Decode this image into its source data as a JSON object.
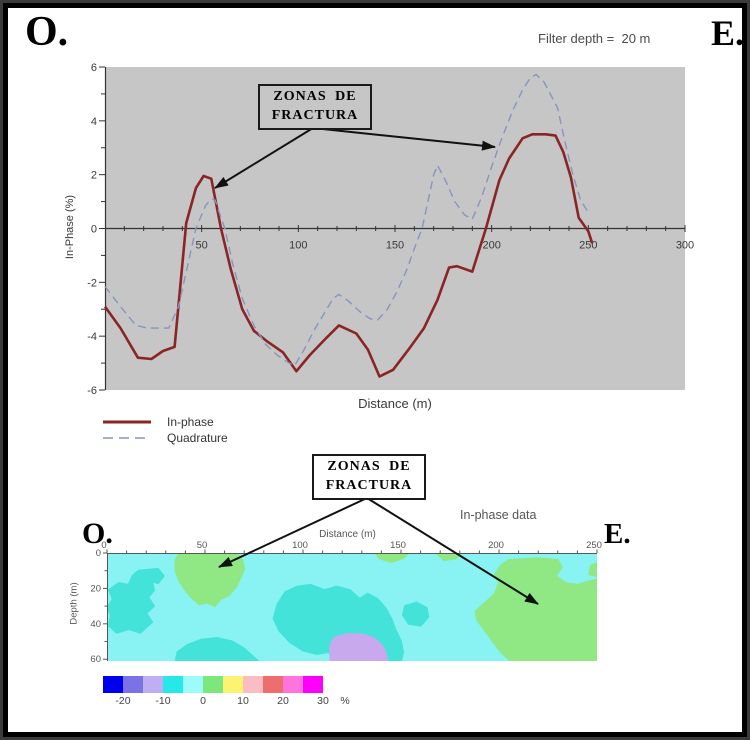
{
  "labels": {
    "top_left": "O.",
    "top_right": "E.",
    "bottom_left": "O.",
    "bottom_right": "E."
  },
  "annotations": {
    "box1": {
      "line1": "ZONAS DE",
      "line2": "FRACTURA"
    },
    "box2": {
      "line1": "ZONAS DE",
      "line2": "FRACTURA"
    }
  },
  "chart_data": [
    {
      "type": "line",
      "title": "Filter depth =  20 m",
      "xlabel": "Distance (m)",
      "ylabel": "In-Phase (%)",
      "xlim": [
        0,
        300
      ],
      "ylim": [
        -6,
        6
      ],
      "x_ticks": [
        50,
        100,
        150,
        200,
        250,
        300
      ],
      "y_ticks": [
        6,
        4,
        2,
        0,
        -2,
        -4,
        -6
      ],
      "plot_background": "#c6c6c6",
      "grid": false,
      "legend_position": "bottom-left",
      "series": [
        {
          "name": "In-phase",
          "color": "#8b2424",
          "style": "solid",
          "points": [
            [
              0,
              -2.9
            ],
            [
              8,
              -3.7
            ],
            [
              17,
              -4.8
            ],
            [
              24,
              -4.85
            ],
            [
              30,
              -4.55
            ],
            [
              36,
              -4.4
            ],
            [
              42,
              0.2
            ],
            [
              47,
              1.5
            ],
            [
              51,
              1.95
            ],
            [
              55,
              1.85
            ],
            [
              60,
              0
            ],
            [
              65,
              -1.5
            ],
            [
              71,
              -3.0
            ],
            [
              77,
              -3.8
            ],
            [
              84,
              -4.2
            ],
            [
              92,
              -4.6
            ],
            [
              99,
              -5.3
            ],
            [
              106,
              -4.7
            ],
            [
              114,
              -4.1
            ],
            [
              121,
              -3.6
            ],
            [
              130,
              -3.9
            ],
            [
              136,
              -4.5
            ],
            [
              142,
              -5.5
            ],
            [
              149,
              -5.25
            ],
            [
              157,
              -4.5
            ],
            [
              165,
              -3.7
            ],
            [
              172,
              -2.65
            ],
            [
              178,
              -1.45
            ],
            [
              182,
              -1.4
            ],
            [
              190,
              -1.6
            ],
            [
              197,
              0
            ],
            [
              204,
              1.8
            ],
            [
              209,
              2.6
            ],
            [
              216,
              3.35
            ],
            [
              221,
              3.5
            ],
            [
              228,
              3.5
            ],
            [
              233,
              3.45
            ],
            [
              237,
              2.85
            ],
            [
              241,
              1.9
            ],
            [
              245,
              0.4
            ],
            [
              250,
              -0.1
            ],
            [
              252,
              -0.55
            ]
          ]
        },
        {
          "name": "Quadrature",
          "color": "#8794c0",
          "style": "dashed",
          "points": [
            [
              0,
              -2.15
            ],
            [
              8,
              -2.9
            ],
            [
              16,
              -3.6
            ],
            [
              22,
              -3.7
            ],
            [
              33,
              -3.7
            ],
            [
              38,
              -2.9
            ],
            [
              43,
              -1.3
            ],
            [
              47,
              0
            ],
            [
              52,
              0.85
            ],
            [
              55,
              1.1
            ],
            [
              57,
              1.05
            ],
            [
              60,
              0.4
            ],
            [
              62,
              0
            ],
            [
              66,
              -1.3
            ],
            [
              71,
              -2.6
            ],
            [
              77,
              -3.6
            ],
            [
              83,
              -4.3
            ],
            [
              89,
              -4.7
            ],
            [
              94,
              -4.95
            ],
            [
              98,
              -5.1
            ],
            [
              103,
              -4.5
            ],
            [
              108,
              -3.8
            ],
            [
              113,
              -3.2
            ],
            [
              118,
              -2.6
            ],
            [
              121,
              -2.45
            ],
            [
              126,
              -2.7
            ],
            [
              132,
              -3.1
            ],
            [
              137,
              -3.35
            ],
            [
              141,
              -3.4
            ],
            [
              146,
              -3.0
            ],
            [
              151,
              -2.35
            ],
            [
              156,
              -1.55
            ],
            [
              160,
              -0.75
            ],
            [
              164,
              0
            ],
            [
              167,
              1.0
            ],
            [
              170,
              2.0
            ],
            [
              172,
              2.35
            ],
            [
              176,
              1.8
            ],
            [
              181,
              1.0
            ],
            [
              186,
              0.5
            ],
            [
              190,
              0.35
            ],
            [
              195,
              1.2
            ],
            [
              200,
              2.3
            ],
            [
              205,
              3.3
            ],
            [
              211,
              4.4
            ],
            [
              216,
              5.15
            ],
            [
              220,
              5.6
            ],
            [
              223,
              5.72
            ],
            [
              227,
              5.45
            ],
            [
              231,
              4.9
            ],
            [
              234,
              4.5
            ],
            [
              238,
              3.2
            ],
            [
              242,
              2.0
            ],
            [
              246,
              1.05
            ],
            [
              250,
              0.6
            ]
          ]
        }
      ]
    },
    {
      "type": "heatmap",
      "title": "In-phase data",
      "xlabel": "Distance (m)",
      "ylabel": "Depth (m)",
      "xlim": [
        0,
        250
      ],
      "ylim": [
        0,
        61
      ],
      "x_ticks": [
        0,
        50,
        100,
        150,
        200,
        250
      ],
      "y_ticks": [
        0,
        20,
        40,
        60
      ],
      "background_color": "#89f3f3",
      "background_value": "0 to 5 %",
      "regions": [
        {
          "name": "turquoise-patch-left",
          "value": "-5 to 0 %",
          "color": "#44e3da",
          "points": [
            [
              16,
              10
            ],
            [
              26,
              9
            ],
            [
              29,
              13
            ],
            [
              26,
              17
            ],
            [
              23,
              16
            ],
            [
              24,
              21
            ],
            [
              21,
              25
            ],
            [
              24,
              30
            ],
            [
              20,
              34
            ],
            [
              23,
              39
            ],
            [
              17,
              45
            ],
            [
              11,
              43
            ],
            [
              5,
              45
            ],
            [
              1,
              41
            ],
            [
              2,
              35
            ],
            [
              0,
              31
            ],
            [
              3,
              26
            ],
            [
              1,
              21
            ],
            [
              6,
              17
            ],
            [
              11,
              18
            ],
            [
              13,
              13
            ]
          ]
        },
        {
          "name": "turquoise-patch-bottom",
          "value": "-5 to 0 %",
          "color": "#44e3da",
          "points": [
            [
              35,
              61
            ],
            [
              36,
              56
            ],
            [
              41,
              52
            ],
            [
              48,
              49
            ],
            [
              56,
              48
            ],
            [
              64,
              50
            ],
            [
              70,
              54
            ],
            [
              74,
              58
            ],
            [
              77,
              61
            ]
          ]
        },
        {
          "name": "turquoise-patch-center",
          "value": "-5 to 0 %",
          "color": "#44e3da",
          "points": [
            [
              85,
              37
            ],
            [
              87,
              29
            ],
            [
              91,
              22
            ],
            [
              97,
              19
            ],
            [
              104,
              18
            ],
            [
              111,
              21
            ],
            [
              117,
              19
            ],
            [
              124,
              21
            ],
            [
              129,
              26
            ],
            [
              133,
              23
            ],
            [
              138,
              26
            ],
            [
              142,
              31
            ],
            [
              145,
              37
            ],
            [
              147,
              43
            ],
            [
              150,
              50
            ],
            [
              151,
              56
            ],
            [
              150,
              61
            ],
            [
              118,
              61
            ],
            [
              113,
              56
            ],
            [
              107,
              57
            ],
            [
              100,
              55
            ],
            [
              93,
              50
            ],
            [
              88,
              44
            ]
          ]
        },
        {
          "name": "turquoise-patch-small",
          "value": "-5 to 0 %",
          "color": "#44e3da",
          "points": [
            [
              152,
              30
            ],
            [
              158,
              28
            ],
            [
              163,
              31
            ],
            [
              164,
              36
            ],
            [
              160,
              41
            ],
            [
              154,
              40
            ],
            [
              151,
              35
            ]
          ]
        },
        {
          "name": "green-anomaly-left",
          "value": "5 to 10 %",
          "color": "#8fe883",
          "points": [
            [
              37,
              0
            ],
            [
              66,
              0
            ],
            [
              69,
              4
            ],
            [
              70,
              9
            ],
            [
              68,
              14
            ],
            [
              66,
              19
            ],
            [
              62,
              24
            ],
            [
              58,
              26
            ],
            [
              55,
              30
            ],
            [
              51,
              28
            ],
            [
              47,
              29
            ],
            [
              43,
              25
            ],
            [
              40,
              21
            ],
            [
              37,
              16
            ],
            [
              35,
              10
            ],
            [
              35,
              4
            ]
          ]
        },
        {
          "name": "green-strip-top-1",
          "value": "5 to 10 %",
          "color": "#8fe883",
          "points": [
            [
              137,
              0
            ],
            [
              154,
              0
            ],
            [
              151,
              3
            ],
            [
              145,
              5
            ],
            [
              139,
              3
            ]
          ]
        },
        {
          "name": "green-strip-top-2",
          "value": "5 to 10 %",
          "color": "#8fe883",
          "points": [
            [
              168,
              0
            ],
            [
              181,
              0
            ],
            [
              178,
              3
            ],
            [
              172,
              4
            ]
          ]
        },
        {
          "name": "green-anomaly-right",
          "value": "5 to 10 %",
          "color": "#8fe883",
          "points": [
            [
              205,
              4
            ],
            [
              220,
              3
            ],
            [
              230,
              4
            ],
            [
              232,
              8
            ],
            [
              229,
              13
            ],
            [
              234,
              17
            ],
            [
              240,
              18
            ],
            [
              246,
              16
            ],
            [
              250,
              15
            ],
            [
              250,
              61
            ],
            [
              206,
              61
            ],
            [
              201,
              56
            ],
            [
              197,
              50
            ],
            [
              193,
              44
            ],
            [
              189,
              38
            ],
            [
              188,
              33
            ],
            [
              193,
              28
            ],
            [
              198,
              23
            ],
            [
              200,
              17
            ],
            [
              198,
              12
            ],
            [
              201,
              7
            ]
          ]
        },
        {
          "name": "green-bump-right-edge",
          "value": "5 to 10 %",
          "color": "#8fe883",
          "points": [
            [
              247,
              7
            ],
            [
              250,
              6
            ],
            [
              250,
              13
            ],
            [
              246,
              12
            ]
          ]
        },
        {
          "name": "purple-patch",
          "value": "-10 to -5 %",
          "color": "#c9a9ee",
          "points": [
            [
              114,
              52
            ],
            [
              116,
              48
            ],
            [
              122,
              46
            ],
            [
              130,
              46
            ],
            [
              136,
              48
            ],
            [
              140,
              52
            ],
            [
              142,
              56
            ],
            [
              143,
              61
            ],
            [
              114,
              61
            ]
          ]
        }
      ],
      "colorbar": {
        "colors": [
          "#0000ee",
          "#7b72e8",
          "#bfaff2",
          "#26e8e8",
          "#9cfcfc",
          "#7ce87c",
          "#fcf470",
          "#fcbcc4",
          "#ee6e6e",
          "#fc74dc",
          "#fc00fc"
        ],
        "tick_labels": [
          "-20",
          "-10",
          "0",
          "10",
          "20",
          "30"
        ],
        "unit": "%"
      }
    }
  ]
}
